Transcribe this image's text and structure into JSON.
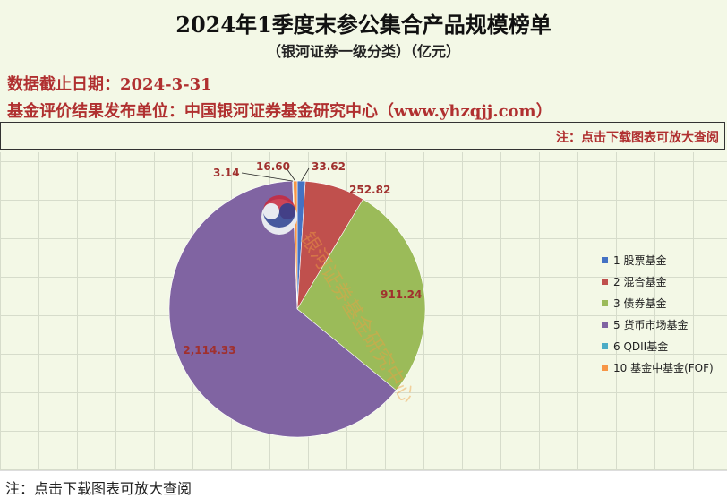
{
  "header": {
    "title": "2024年1季度末参公集合产品规模榜单",
    "subtitle": "（银河证券一级分类）（亿元）",
    "date_line": "数据截止日期：2024-3-31",
    "publisher_line": "基金评价结果发布单位：中国银河证券基金研究中心（www.yhzqjj.com）",
    "note": "注：点击下载图表可放大查阅"
  },
  "watermark": {
    "text": "银河证券基金研究中心",
    "logo": "yinhe-logo"
  },
  "footer": {
    "note": "注：点击下载图表可放大查阅"
  },
  "chart_data": {
    "type": "pie",
    "title": "2024年1季度末参公集合产品规模榜单",
    "subtitle": "（银河证券一级分类）（亿元）",
    "legend_position": "right",
    "categories": [
      "1 股票基金",
      "2 混合基金",
      "3 债券基金",
      "5 货币市场基金",
      "6 QDII基金",
      "10 基金中基金(FOF)"
    ],
    "values": [
      33.62,
      252.82,
      911.24,
      2114.33,
      3.14,
      16.6
    ],
    "labels": [
      "33.62",
      "252.82",
      "911.24",
      "2,114.33",
      "3.14",
      "16.60"
    ],
    "colors": [
      "#4472c4",
      "#c0504d",
      "#9bbb59",
      "#8064a2",
      "#4bacc6",
      "#f79646"
    ]
  }
}
